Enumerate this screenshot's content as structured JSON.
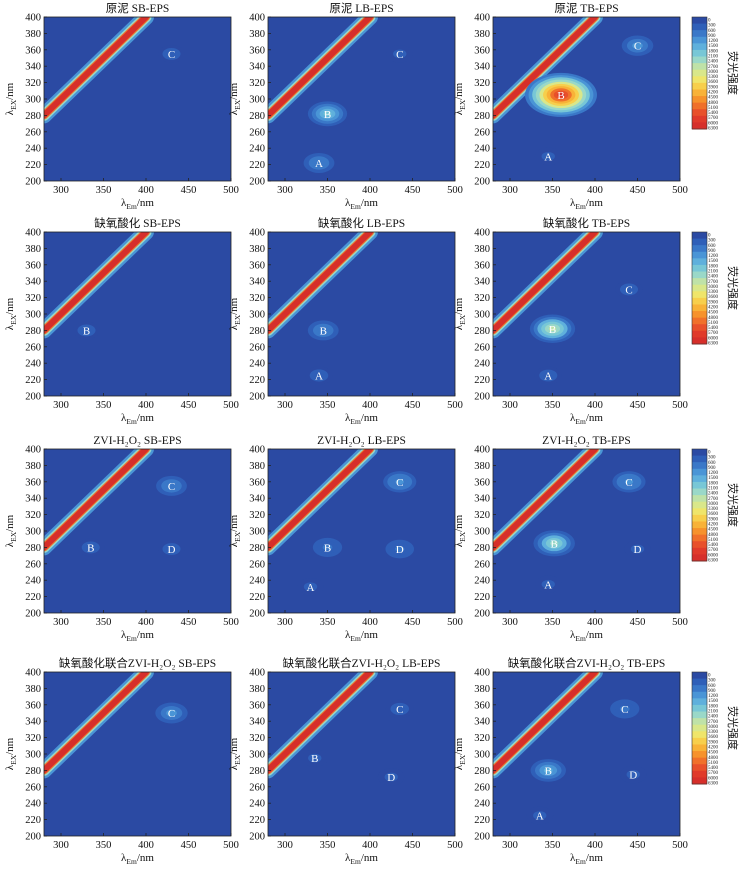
{
  "chart_data": {
    "type": "heatmap",
    "description_units": {
      "x": "emission wavelength (nm)",
      "y": "excitation wavelength (nm)"
    },
    "axes": {
      "xlabel_main": "λ",
      "xlabel_sub": "Em",
      "xlabel_unit": "/nm",
      "ylabel_main": "λ",
      "ylabel_sub": "EX",
      "ylabel_unit": "/nm",
      "xlim": [
        280,
        500
      ],
      "ylim": [
        200,
        400
      ],
      "xticks": [
        "300",
        "350",
        "400",
        "450",
        "500"
      ],
      "yticks": [
        "200",
        "220",
        "240",
        "260",
        "280",
        "300",
        "320",
        "340",
        "360",
        "380",
        "400"
      ]
    },
    "colorbar": {
      "label": "荧光强度",
      "ticks": [
        "0",
        "300",
        "600",
        "900",
        "1200",
        "1500",
        "1800",
        "2100",
        "2400",
        "2700",
        "3000",
        "3300",
        "3600",
        "3900",
        "4200",
        "4500",
        "4800",
        "5100",
        "5400",
        "5700",
        "6000",
        "6300"
      ],
      "colors": [
        "#2b4aa3",
        "#2f5fb8",
        "#3a78c8",
        "#4a95d6",
        "#5fb0dc",
        "#78c7d6",
        "#9ad8c8",
        "#bfe2a8",
        "#d9e78a",
        "#efe56a",
        "#f7cf4c",
        "#f8b238",
        "#f6922c",
        "#f0702a",
        "#e8502a",
        "#e03a2a",
        "#d62f2a"
      ]
    },
    "panels": [
      {
        "title": "原泥 SB-EPS",
        "peaks": [
          {
            "label": "C",
            "em": 430,
            "ex": 355,
            "intensity": 400
          }
        ]
      },
      {
        "title": "原泥 LB-EPS",
        "peaks": [
          {
            "label": "B",
            "em": 350,
            "ex": 282,
            "intensity": 2000
          },
          {
            "label": "A",
            "em": 340,
            "ex": 222,
            "intensity": 900
          },
          {
            "label": "C",
            "em": 435,
            "ex": 355,
            "intensity": 350
          }
        ]
      },
      {
        "title": "原泥 TB-EPS",
        "peaks": [
          {
            "label": "B",
            "em": 360,
            "ex": 305,
            "intensity": 6300
          },
          {
            "label": "C",
            "em": 450,
            "ex": 365,
            "intensity": 1000
          },
          {
            "label": "A",
            "em": 345,
            "ex": 230,
            "intensity": 350
          }
        ]
      },
      {
        "title": "缺氧酸化 SB-EPS",
        "peaks": [
          {
            "label": "B",
            "em": 330,
            "ex": 280,
            "intensity": 400
          }
        ]
      },
      {
        "title": "缺氧酸化 LB-EPS",
        "peaks": [
          {
            "label": "B",
            "em": 345,
            "ex": 280,
            "intensity": 900
          },
          {
            "label": "A",
            "em": 340,
            "ex": 225,
            "intensity": 500
          }
        ]
      },
      {
        "title": "缺氧酸化 TB-EPS",
        "peaks": [
          {
            "label": "B",
            "em": 350,
            "ex": 282,
            "intensity": 2800
          },
          {
            "label": "C",
            "em": 440,
            "ex": 330,
            "intensity": 400
          },
          {
            "label": "A",
            "em": 345,
            "ex": 225,
            "intensity": 400
          }
        ]
      },
      {
        "title": "ZVI-H₂O₂ SB-EPS",
        "peaks": [
          {
            "label": "C",
            "em": 430,
            "ex": 355,
            "intensity": 900
          },
          {
            "label": "B",
            "em": 335,
            "ex": 280,
            "intensity": 400
          },
          {
            "label": "D",
            "em": 430,
            "ex": 278,
            "intensity": 400
          }
        ]
      },
      {
        "title": "ZVI-H₂O₂ LB-EPS",
        "peaks": [
          {
            "label": "C",
            "em": 435,
            "ex": 360,
            "intensity": 1200
          },
          {
            "label": "B",
            "em": 350,
            "ex": 280,
            "intensity": 700
          },
          {
            "label": "D",
            "em": 435,
            "ex": 278,
            "intensity": 600
          },
          {
            "label": "A",
            "em": 330,
            "ex": 232,
            "intensity": 350
          }
        ]
      },
      {
        "title": "ZVI-H₂O₂ TB-EPS",
        "peaks": [
          {
            "label": "B",
            "em": 352,
            "ex": 285,
            "intensity": 2300
          },
          {
            "label": "C",
            "em": 440,
            "ex": 360,
            "intensity": 1200
          },
          {
            "label": "D",
            "em": 450,
            "ex": 278,
            "intensity": 350
          },
          {
            "label": "A",
            "em": 345,
            "ex": 235,
            "intensity": 350
          }
        ]
      },
      {
        "title": "缺氧酸化联合ZVI-H₂O₂ SB-EPS",
        "peaks": [
          {
            "label": "C",
            "em": 430,
            "ex": 350,
            "intensity": 1100
          }
        ]
      },
      {
        "title": "缺氧酸化联合ZVI-H₂O₂ LB-EPS",
        "peaks": [
          {
            "label": "C",
            "em": 435,
            "ex": 355,
            "intensity": 500
          },
          {
            "label": "B",
            "em": 335,
            "ex": 295,
            "intensity": 350
          },
          {
            "label": "D",
            "em": 425,
            "ex": 272,
            "intensity": 350
          }
        ]
      },
      {
        "title": "缺氧酸化联合ZVI-H₂O₂ TB-EPS",
        "peaks": [
          {
            "label": "C",
            "em": 435,
            "ex": 355,
            "intensity": 700
          },
          {
            "label": "B",
            "em": 345,
            "ex": 280,
            "intensity": 1500
          },
          {
            "label": "D",
            "em": 445,
            "ex": 275,
            "intensity": 350
          },
          {
            "label": "A",
            "em": 335,
            "ex": 225,
            "intensity": 350
          }
        ]
      }
    ]
  }
}
